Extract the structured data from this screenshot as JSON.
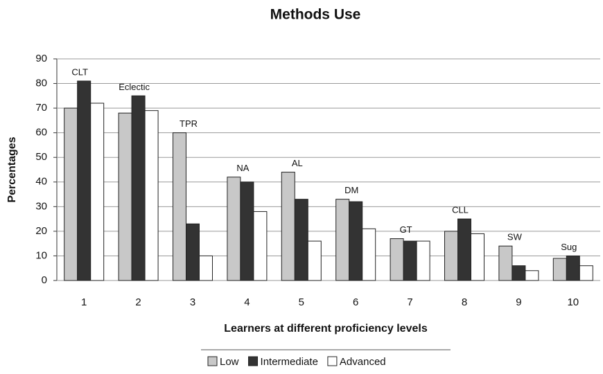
{
  "chart_data": {
    "type": "bar",
    "title": "Methods Use",
    "x_label": "Learners at different proficiency levels",
    "y_label": "Percentages",
    "categories": [
      "1",
      "2",
      "3",
      "4",
      "5",
      "6",
      "7",
      "8",
      "9",
      "10"
    ],
    "annotations": [
      "CLT",
      "Eclectic",
      "TPR",
      "NA",
      "AL",
      "DM",
      "GT",
      "CLL",
      "SW",
      "Sug"
    ],
    "series": [
      {
        "name": "Low",
        "color": "#c8c8c8",
        "values": [
          70,
          68,
          60,
          42,
          44,
          33,
          17,
          20,
          14,
          9
        ]
      },
      {
        "name": "Intermediate",
        "color": "#333333",
        "values": [
          81,
          75,
          23,
          40,
          33,
          32,
          16,
          25,
          6,
          10
        ]
      },
      {
        "name": "Advanced",
        "color": "#ffffff",
        "values": [
          72,
          69,
          10,
          28,
          16,
          21,
          16,
          19,
          4,
          6
        ]
      }
    ],
    "ylim": [
      0,
      90
    ],
    "yticks": [
      0,
      10,
      20,
      30,
      40,
      50,
      60,
      70,
      80,
      90
    ],
    "grid": true,
    "legend": "bottom"
  }
}
